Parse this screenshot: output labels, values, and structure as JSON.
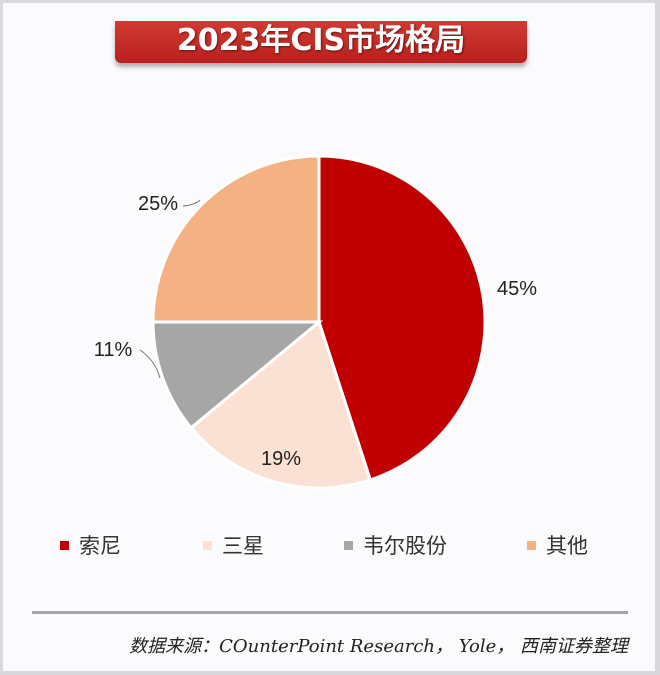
{
  "chart_data": {
    "type": "pie",
    "title": "2023年CIS市场格局",
    "start_angle": "12 o'clock, clockwise",
    "slices": [
      {
        "name": "索尼",
        "value": 45,
        "label": "45%",
        "color": "#c00000"
      },
      {
        "name": "三星",
        "value": 19,
        "label": "19%",
        "color": "#fbe1d3"
      },
      {
        "name": "韦尔股份",
        "value": 11,
        "label": "11%",
        "color": "#a6a6a6"
      },
      {
        "name": "其他",
        "value": 25,
        "label": "25%",
        "color": "#f4b183"
      }
    ],
    "legend_placement": "bottom"
  },
  "source": "数据来源：COunterPoint Research， Yole， 西南证券整理"
}
